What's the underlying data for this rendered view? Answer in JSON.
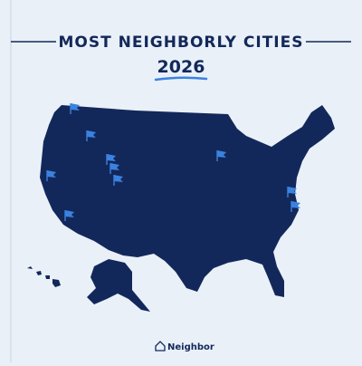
{
  "header": {
    "title": "MOST NEIGHBORLY CITIES",
    "year": "2026"
  },
  "footer": {
    "brand": "Neighbor"
  }
}
